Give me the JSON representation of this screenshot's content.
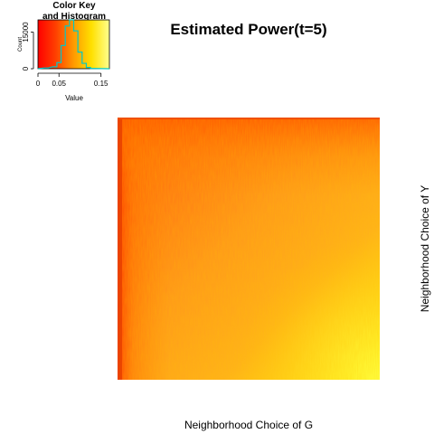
{
  "chart_data": [
    {
      "type": "heatmap",
      "title": "Estimated Power(t=5)",
      "xlabel": "Neighborhood Choice of G",
      "ylabel": "Neighborhood Choice of Y",
      "color_scale": [
        "#ff0000",
        "#ff4000",
        "#ff8000",
        "#ffbf00",
        "#ffff00",
        "#ffff80"
      ],
      "value_range": [
        0,
        0.17
      ],
      "approx_values": {
        "left_edge": 0.03,
        "top_edge": 0.05,
        "center": 0.09,
        "bottom_right_corner": 0.16
      }
    },
    {
      "type": "bar",
      "title": "Color Key\nand Histogram",
      "title_lines": [
        "Color Key",
        "and Histogram"
      ],
      "xlabel": "Value",
      "ylabel": "Count",
      "xticks": [
        "0",
        "0.05",
        "0.15"
      ],
      "yticks": [
        "0",
        "15000"
      ],
      "xlim": [
        0,
        0.17
      ],
      "ylim": [
        0,
        20000
      ],
      "histogram": [
        {
          "x": 0.02,
          "count": 300
        },
        {
          "x": 0.04,
          "count": 800
        },
        {
          "x": 0.05,
          "count": 2500
        },
        {
          "x": 0.06,
          "count": 9500
        },
        {
          "x": 0.07,
          "count": 17500
        },
        {
          "x": 0.08,
          "count": 20000
        },
        {
          "x": 0.09,
          "count": 15500
        },
        {
          "x": 0.1,
          "count": 6800
        },
        {
          "x": 0.11,
          "count": 2200
        },
        {
          "x": 0.12,
          "count": 500
        },
        {
          "x": 0.13,
          "count": 100
        }
      ]
    }
  ]
}
